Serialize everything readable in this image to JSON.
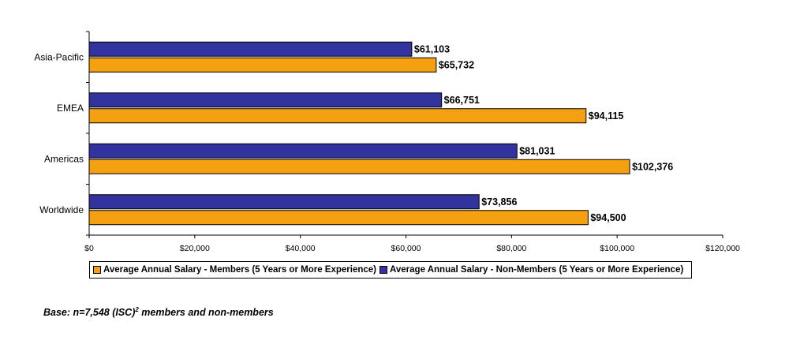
{
  "chart_data": {
    "type": "bar",
    "orientation": "horizontal",
    "categories": [
      "Asia-Pacific",
      "EMEA",
      "Americas",
      "Worldwide"
    ],
    "series": [
      {
        "name": "Average Annual Salary - Non-Members (5 Years or More Experience)",
        "color": "#3333a0",
        "values": [
          61103,
          66751,
          81031,
          73856
        ],
        "labels": [
          "$61,103",
          "$66,751",
          "$81,031",
          "$73,856"
        ]
      },
      {
        "name": "Average Annual Salary - Members (5 Years or More Experience)",
        "color": "#f5a010",
        "values": [
          65732,
          94115,
          102376,
          94500
        ],
        "labels": [
          "$65,732",
          "$94,115",
          "$102,376",
          "$94,500"
        ]
      }
    ],
    "xlim": [
      0,
      120000
    ],
    "x_ticks": [
      0,
      20000,
      40000,
      60000,
      80000,
      100000,
      120000
    ],
    "x_tick_labels": [
      "$0",
      "$20,000",
      "$40,000",
      "$60,000",
      "$80,000",
      "$100,000",
      "$120,000"
    ],
    "grid": false,
    "legend_position": "bottom"
  },
  "legend": {
    "members": "Average Annual Salary - Members (5 Years or More Experience)",
    "non_members": "Average Annual Salary - Non-Members (5 Years or More Experience)"
  },
  "footnote": {
    "prefix": "Base: n=7,548 (ISC)",
    "superscript": "2",
    "suffix": " members and non-members"
  }
}
